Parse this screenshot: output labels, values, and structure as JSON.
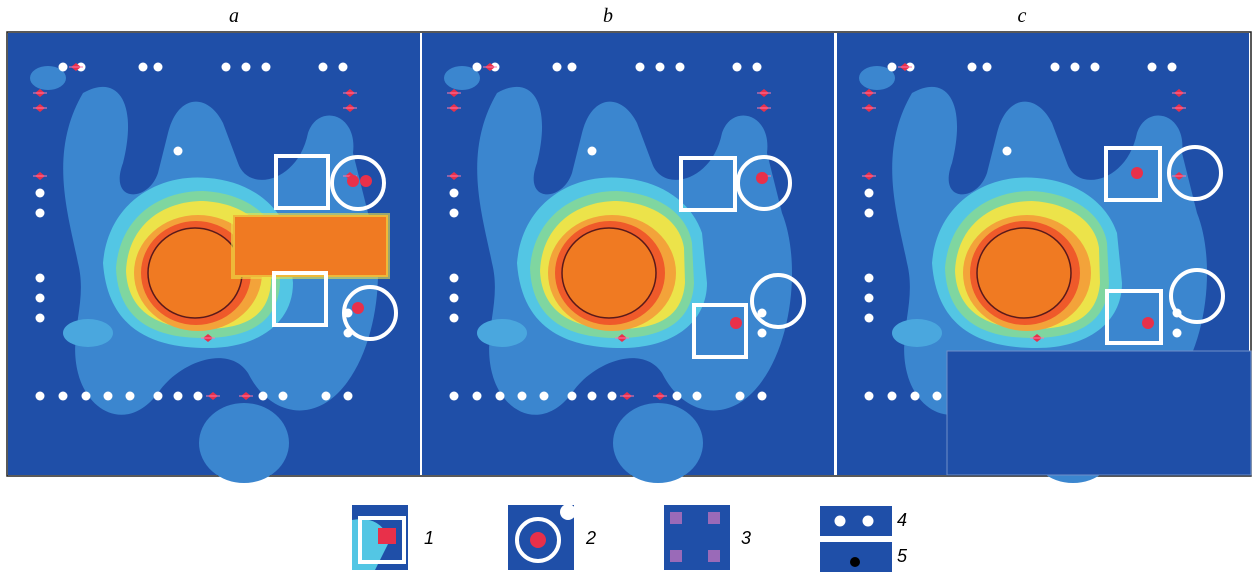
{
  "panels": [
    {
      "label": "a"
    },
    {
      "label": "b"
    },
    {
      "label": "c"
    }
  ],
  "legend": [
    {
      "label": "1"
    },
    {
      "label": "2"
    },
    {
      "label": "3"
    },
    {
      "label": "4"
    },
    {
      "label": "5"
    }
  ]
}
